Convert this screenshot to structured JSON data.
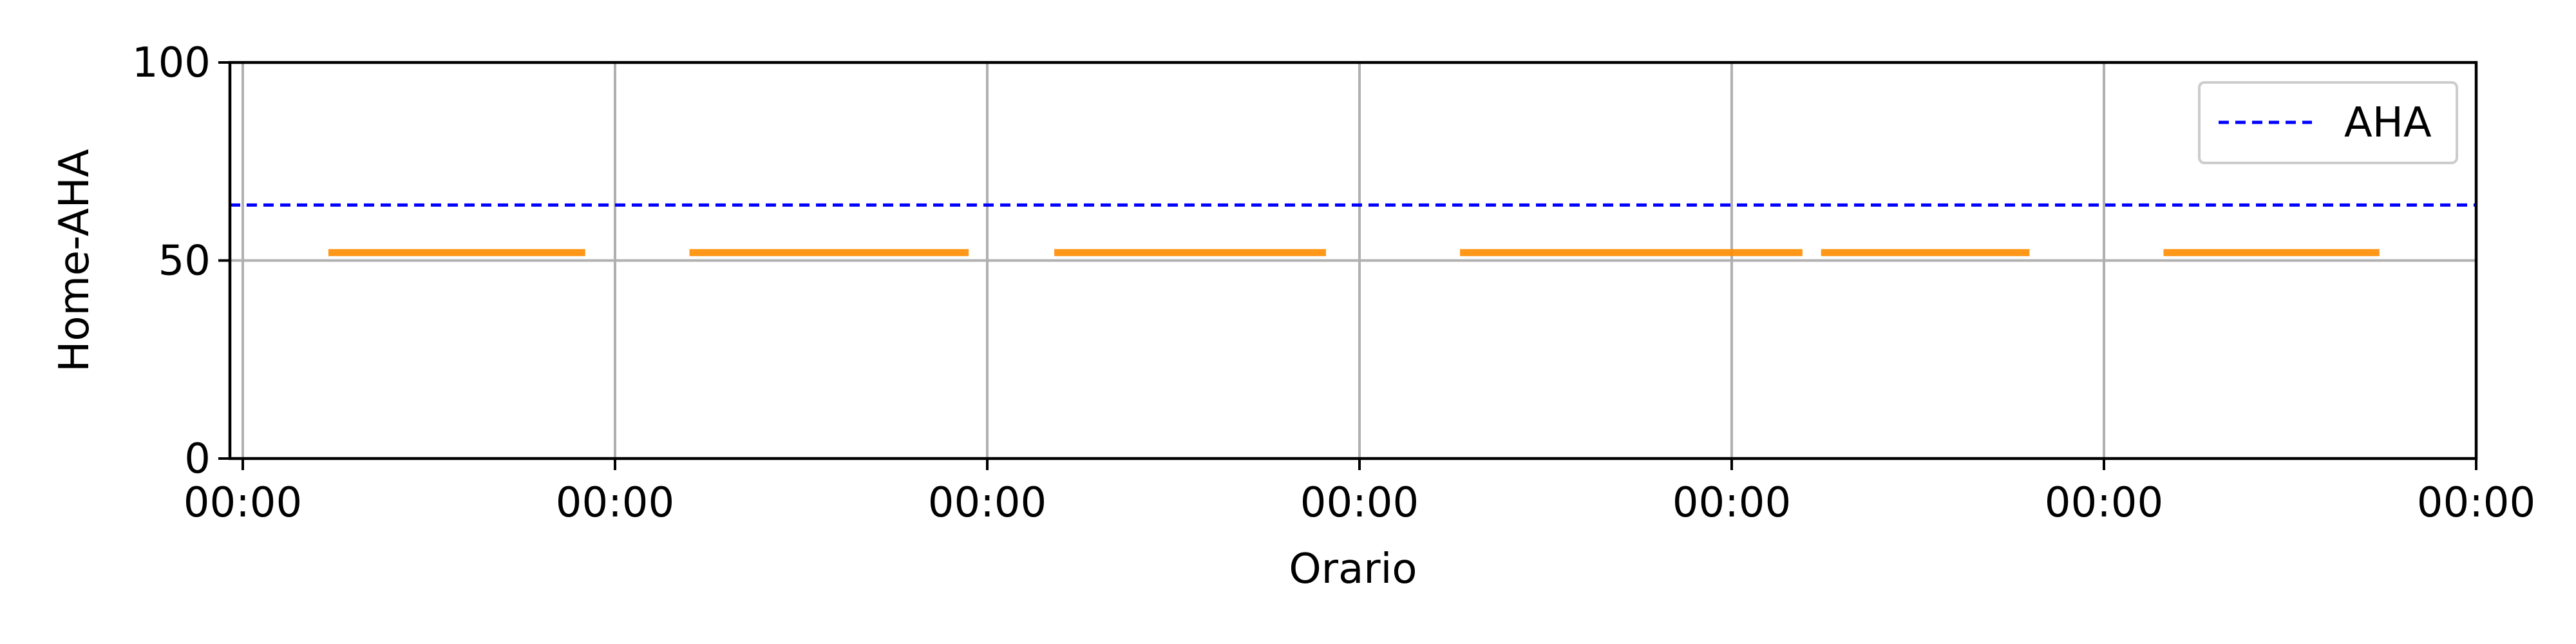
{
  "chart_data": {
    "type": "line",
    "title": "",
    "xlabel": "Orario",
    "ylabel": "Home-AHA",
    "ylim": [
      0,
      100
    ],
    "xlim": [
      0,
      6
    ],
    "y_ticks": [
      0,
      50,
      100
    ],
    "x_ticks": [
      0,
      1,
      2,
      3,
      4,
      5,
      6
    ],
    "x_tick_labels": [
      "00:00",
      "00:00",
      "00:00",
      "00:00",
      "00:00",
      "00:00",
      "00:00"
    ],
    "grid": true,
    "legend_position": "top-right",
    "reference_lines": [
      {
        "name": "AHA",
        "y": 64,
        "style": "dashed",
        "color": "#0000ff"
      }
    ],
    "series": [
      {
        "color": "#ff8c00",
        "segments": [
          {
            "x_start": 0.23,
            "x_end": 0.92,
            "y": 52
          },
          {
            "x_start": 1.2,
            "x_end": 1.95,
            "y": 52
          },
          {
            "x_start": 2.18,
            "x_end": 2.91,
            "y": 52
          },
          {
            "x_start": 3.27,
            "x_end": 4.19,
            "y": 52
          },
          {
            "x_start": 4.24,
            "x_end": 4.8,
            "y": 52
          },
          {
            "x_start": 5.16,
            "x_end": 5.74,
            "y": 52
          }
        ]
      }
    ]
  }
}
